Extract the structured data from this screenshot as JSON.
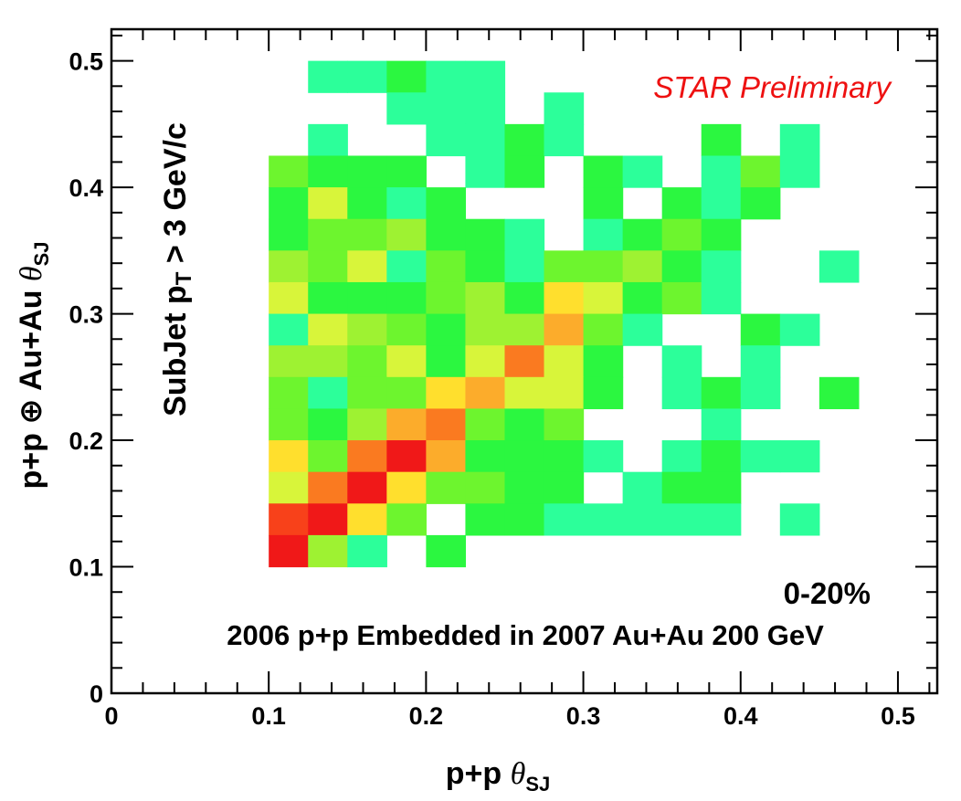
{
  "chart_data": {
    "type": "heatmap",
    "xlabel": {
      "prefix": "p+p ",
      "symbol": "θ",
      "sub": "SJ"
    },
    "ylabel": {
      "prefix": "p+p ⊕ Au+Au ",
      "symbol": "θ",
      "sub": "SJ"
    },
    "xlim": [
      0,
      0.525
    ],
    "ylim": [
      0,
      0.525
    ],
    "bin_width": 0.025,
    "x_ticks": [
      "0",
      "0.1",
      "0.2",
      "0.3",
      "0.4",
      "0.5"
    ],
    "x_tick_values": [
      0,
      0.1,
      0.2,
      0.3,
      0.4,
      0.5
    ],
    "y_ticks": [
      "0",
      "0.1",
      "0.2",
      "0.3",
      "0.4",
      "0.5"
    ],
    "y_tick_values": [
      0,
      0.1,
      0.2,
      0.3,
      0.4,
      0.5
    ],
    "grid": false,
    "annotations": {
      "preliminary": "STAR Preliminary",
      "cut": {
        "prefix": "SubJet p",
        "sub": "T",
        "suffix": " > 3 GeV/c"
      },
      "centrality": "0-20%",
      "dataset": "2006 p+p Embedded in 2007 Au+Au 200 GeV"
    },
    "palette": [
      "#2cff9a",
      "#2bf740",
      "#6df52e",
      "#9ef232",
      "#d8f53a",
      "#ffdf2d",
      "#fcac2b",
      "#fa7a20",
      "#f8411a",
      "#f01818"
    ],
    "bins": [
      {
        "x": 0.125,
        "y": 0.475,
        "level": 0
      },
      {
        "x": 0.15,
        "y": 0.475,
        "level": 0
      },
      {
        "x": 0.175,
        "y": 0.475,
        "level": 1
      },
      {
        "x": 0.175,
        "y": 0.45,
        "level": 0
      },
      {
        "x": 0.2,
        "y": 0.475,
        "level": 0
      },
      {
        "x": 0.225,
        "y": 0.475,
        "level": 0
      },
      {
        "x": 0.2,
        "y": 0.45,
        "level": 0
      },
      {
        "x": 0.225,
        "y": 0.45,
        "level": 0
      },
      {
        "x": 0.275,
        "y": 0.45,
        "level": 0
      },
      {
        "x": 0.125,
        "y": 0.425,
        "level": 0
      },
      {
        "x": 0.2,
        "y": 0.425,
        "level": 0
      },
      {
        "x": 0.225,
        "y": 0.425,
        "level": 0
      },
      {
        "x": 0.25,
        "y": 0.425,
        "level": 1
      },
      {
        "x": 0.275,
        "y": 0.425,
        "level": 0
      },
      {
        "x": 0.375,
        "y": 0.425,
        "level": 1
      },
      {
        "x": 0.425,
        "y": 0.425,
        "level": 0
      },
      {
        "x": 0.1,
        "y": 0.4,
        "level": 2
      },
      {
        "x": 0.125,
        "y": 0.4,
        "level": 1
      },
      {
        "x": 0.15,
        "y": 0.4,
        "level": 1
      },
      {
        "x": 0.175,
        "y": 0.4,
        "level": 1
      },
      {
        "x": 0.225,
        "y": 0.4,
        "level": 0
      },
      {
        "x": 0.25,
        "y": 0.4,
        "level": 1
      },
      {
        "x": 0.3,
        "y": 0.4,
        "level": 1
      },
      {
        "x": 0.325,
        "y": 0.4,
        "level": 0
      },
      {
        "x": 0.375,
        "y": 0.4,
        "level": 0
      },
      {
        "x": 0.4,
        "y": 0.4,
        "level": 2
      },
      {
        "x": 0.425,
        "y": 0.4,
        "level": 0
      },
      {
        "x": 0.1,
        "y": 0.375,
        "level": 1
      },
      {
        "x": 0.125,
        "y": 0.375,
        "level": 4
      },
      {
        "x": 0.15,
        "y": 0.375,
        "level": 1
      },
      {
        "x": 0.175,
        "y": 0.375,
        "level": 0
      },
      {
        "x": 0.2,
        "y": 0.375,
        "level": 1
      },
      {
        "x": 0.3,
        "y": 0.375,
        "level": 1
      },
      {
        "x": 0.35,
        "y": 0.375,
        "level": 1
      },
      {
        "x": 0.375,
        "y": 0.375,
        "level": 0
      },
      {
        "x": 0.4,
        "y": 0.375,
        "level": 1
      },
      {
        "x": 0.1,
        "y": 0.35,
        "level": 1
      },
      {
        "x": 0.125,
        "y": 0.35,
        "level": 2
      },
      {
        "x": 0.15,
        "y": 0.35,
        "level": 2
      },
      {
        "x": 0.175,
        "y": 0.35,
        "level": 3
      },
      {
        "x": 0.2,
        "y": 0.35,
        "level": 1
      },
      {
        "x": 0.225,
        "y": 0.35,
        "level": 1
      },
      {
        "x": 0.25,
        "y": 0.35,
        "level": 0
      },
      {
        "x": 0.3,
        "y": 0.35,
        "level": 0
      },
      {
        "x": 0.325,
        "y": 0.35,
        "level": 1
      },
      {
        "x": 0.35,
        "y": 0.35,
        "level": 2
      },
      {
        "x": 0.375,
        "y": 0.35,
        "level": 1
      },
      {
        "x": 0.1,
        "y": 0.325,
        "level": 3
      },
      {
        "x": 0.125,
        "y": 0.325,
        "level": 2
      },
      {
        "x": 0.15,
        "y": 0.325,
        "level": 4
      },
      {
        "x": 0.175,
        "y": 0.325,
        "level": 0
      },
      {
        "x": 0.2,
        "y": 0.325,
        "level": 2
      },
      {
        "x": 0.225,
        "y": 0.325,
        "level": 1
      },
      {
        "x": 0.25,
        "y": 0.325,
        "level": 0
      },
      {
        "x": 0.275,
        "y": 0.325,
        "level": 2
      },
      {
        "x": 0.3,
        "y": 0.325,
        "level": 2
      },
      {
        "x": 0.325,
        "y": 0.325,
        "level": 3
      },
      {
        "x": 0.35,
        "y": 0.325,
        "level": 1
      },
      {
        "x": 0.375,
        "y": 0.325,
        "level": 0
      },
      {
        "x": 0.45,
        "y": 0.325,
        "level": 0
      },
      {
        "x": 0.1,
        "y": 0.3,
        "level": 4
      },
      {
        "x": 0.125,
        "y": 0.3,
        "level": 1
      },
      {
        "x": 0.15,
        "y": 0.3,
        "level": 1
      },
      {
        "x": 0.175,
        "y": 0.3,
        "level": 1
      },
      {
        "x": 0.2,
        "y": 0.3,
        "level": 2
      },
      {
        "x": 0.225,
        "y": 0.3,
        "level": 3
      },
      {
        "x": 0.25,
        "y": 0.3,
        "level": 1
      },
      {
        "x": 0.275,
        "y": 0.3,
        "level": 5
      },
      {
        "x": 0.3,
        "y": 0.3,
        "level": 4
      },
      {
        "x": 0.325,
        "y": 0.3,
        "level": 1
      },
      {
        "x": 0.35,
        "y": 0.3,
        "level": 2
      },
      {
        "x": 0.375,
        "y": 0.3,
        "level": 0
      },
      {
        "x": 0.1,
        "y": 0.275,
        "level": 0
      },
      {
        "x": 0.125,
        "y": 0.275,
        "level": 4
      },
      {
        "x": 0.15,
        "y": 0.275,
        "level": 3
      },
      {
        "x": 0.175,
        "y": 0.275,
        "level": 2
      },
      {
        "x": 0.2,
        "y": 0.275,
        "level": 1
      },
      {
        "x": 0.225,
        "y": 0.275,
        "level": 3
      },
      {
        "x": 0.25,
        "y": 0.275,
        "level": 3
      },
      {
        "x": 0.275,
        "y": 0.275,
        "level": 6
      },
      {
        "x": 0.3,
        "y": 0.275,
        "level": 2
      },
      {
        "x": 0.325,
        "y": 0.275,
        "level": 0
      },
      {
        "x": 0.4,
        "y": 0.275,
        "level": 1
      },
      {
        "x": 0.425,
        "y": 0.275,
        "level": 0
      },
      {
        "x": 0.1,
        "y": 0.25,
        "level": 3
      },
      {
        "x": 0.125,
        "y": 0.25,
        "level": 3
      },
      {
        "x": 0.15,
        "y": 0.25,
        "level": 2
      },
      {
        "x": 0.175,
        "y": 0.25,
        "level": 4
      },
      {
        "x": 0.2,
        "y": 0.25,
        "level": 1
      },
      {
        "x": 0.225,
        "y": 0.25,
        "level": 4
      },
      {
        "x": 0.25,
        "y": 0.25,
        "level": 7
      },
      {
        "x": 0.275,
        "y": 0.25,
        "level": 4
      },
      {
        "x": 0.3,
        "y": 0.25,
        "level": 1
      },
      {
        "x": 0.35,
        "y": 0.25,
        "level": 0
      },
      {
        "x": 0.4,
        "y": 0.25,
        "level": 0
      },
      {
        "x": 0.1,
        "y": 0.225,
        "level": 2
      },
      {
        "x": 0.125,
        "y": 0.225,
        "level": 0
      },
      {
        "x": 0.15,
        "y": 0.225,
        "level": 2
      },
      {
        "x": 0.175,
        "y": 0.225,
        "level": 2
      },
      {
        "x": 0.2,
        "y": 0.225,
        "level": 5
      },
      {
        "x": 0.225,
        "y": 0.225,
        "level": 6
      },
      {
        "x": 0.25,
        "y": 0.225,
        "level": 4
      },
      {
        "x": 0.275,
        "y": 0.225,
        "level": 4
      },
      {
        "x": 0.3,
        "y": 0.225,
        "level": 1
      },
      {
        "x": 0.35,
        "y": 0.225,
        "level": 0
      },
      {
        "x": 0.375,
        "y": 0.225,
        "level": 1
      },
      {
        "x": 0.4,
        "y": 0.225,
        "level": 0
      },
      {
        "x": 0.45,
        "y": 0.225,
        "level": 1
      },
      {
        "x": 0.1,
        "y": 0.2,
        "level": 2
      },
      {
        "x": 0.125,
        "y": 0.2,
        "level": 1
      },
      {
        "x": 0.15,
        "y": 0.2,
        "level": 3
      },
      {
        "x": 0.175,
        "y": 0.2,
        "level": 6
      },
      {
        "x": 0.2,
        "y": 0.2,
        "level": 7
      },
      {
        "x": 0.225,
        "y": 0.2,
        "level": 2
      },
      {
        "x": 0.25,
        "y": 0.2,
        "level": 1
      },
      {
        "x": 0.275,
        "y": 0.2,
        "level": 2
      },
      {
        "x": 0.375,
        "y": 0.2,
        "level": 0
      },
      {
        "x": 0.1,
        "y": 0.175,
        "level": 5
      },
      {
        "x": 0.125,
        "y": 0.175,
        "level": 2
      },
      {
        "x": 0.15,
        "y": 0.175,
        "level": 7
      },
      {
        "x": 0.175,
        "y": 0.175,
        "level": 9
      },
      {
        "x": 0.2,
        "y": 0.175,
        "level": 6
      },
      {
        "x": 0.225,
        "y": 0.175,
        "level": 1
      },
      {
        "x": 0.25,
        "y": 0.175,
        "level": 1
      },
      {
        "x": 0.275,
        "y": 0.175,
        "level": 1
      },
      {
        "x": 0.3,
        "y": 0.175,
        "level": 0
      },
      {
        "x": 0.35,
        "y": 0.175,
        "level": 0
      },
      {
        "x": 0.375,
        "y": 0.175,
        "level": 1
      },
      {
        "x": 0.4,
        "y": 0.175,
        "level": 0
      },
      {
        "x": 0.425,
        "y": 0.175,
        "level": 0
      },
      {
        "x": 0.1,
        "y": 0.15,
        "level": 4
      },
      {
        "x": 0.125,
        "y": 0.15,
        "level": 7
      },
      {
        "x": 0.15,
        "y": 0.15,
        "level": 9
      },
      {
        "x": 0.175,
        "y": 0.15,
        "level": 5
      },
      {
        "x": 0.2,
        "y": 0.15,
        "level": 2
      },
      {
        "x": 0.225,
        "y": 0.15,
        "level": 2
      },
      {
        "x": 0.25,
        "y": 0.15,
        "level": 1
      },
      {
        "x": 0.275,
        "y": 0.15,
        "level": 1
      },
      {
        "x": 0.325,
        "y": 0.15,
        "level": 0
      },
      {
        "x": 0.35,
        "y": 0.15,
        "level": 1
      },
      {
        "x": 0.375,
        "y": 0.15,
        "level": 1
      },
      {
        "x": 0.1,
        "y": 0.125,
        "level": 8
      },
      {
        "x": 0.125,
        "y": 0.125,
        "level": 9
      },
      {
        "x": 0.15,
        "y": 0.125,
        "level": 5
      },
      {
        "x": 0.175,
        "y": 0.125,
        "level": 2
      },
      {
        "x": 0.225,
        "y": 0.125,
        "level": 1
      },
      {
        "x": 0.25,
        "y": 0.125,
        "level": 1
      },
      {
        "x": 0.275,
        "y": 0.125,
        "level": 0
      },
      {
        "x": 0.3,
        "y": 0.125,
        "level": 0
      },
      {
        "x": 0.325,
        "y": 0.125,
        "level": 0
      },
      {
        "x": 0.35,
        "y": 0.125,
        "level": 0
      },
      {
        "x": 0.375,
        "y": 0.125,
        "level": 0
      },
      {
        "x": 0.425,
        "y": 0.125,
        "level": 0
      },
      {
        "x": 0.1,
        "y": 0.1,
        "level": 9
      },
      {
        "x": 0.125,
        "y": 0.1,
        "level": 3
      },
      {
        "x": 0.15,
        "y": 0.1,
        "level": 0
      },
      {
        "x": 0.2,
        "y": 0.1,
        "level": 1
      }
    ]
  }
}
